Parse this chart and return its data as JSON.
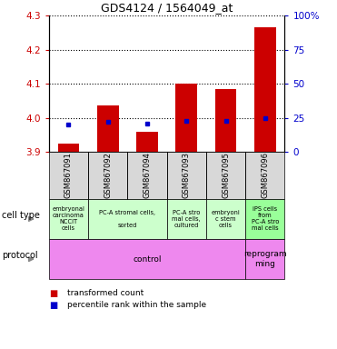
{
  "title": "GDS4124 / 1564049_at",
  "samples": [
    "GSM867091",
    "GSM867092",
    "GSM867094",
    "GSM867093",
    "GSM867095",
    "GSM867096"
  ],
  "transformed_counts": [
    3.925,
    4.035,
    3.96,
    4.1,
    4.085,
    4.265
  ],
  "percentile_ranks": [
    20,
    22,
    21,
    23,
    23,
    25
  ],
  "y_min": 3.9,
  "y_max": 4.3,
  "y_ticks": [
    3.9,
    4.0,
    4.1,
    4.2,
    4.3
  ],
  "y_right_ticks": [
    0,
    25,
    50,
    75,
    100
  ],
  "y_right_labels": [
    "0",
    "25",
    "50",
    "75",
    "100%"
  ],
  "bar_color": "#cc0000",
  "dot_color": "#0000cc",
  "bar_width": 0.55,
  "cell_type_data": [
    {
      "label": "embryonal\ncarcinoma\nNCCIT\ncells",
      "start": 0,
      "end": 1,
      "color": "#ccffcc"
    },
    {
      "label": "PC-A stromal cells,\n\nsorted",
      "start": 1,
      "end": 3,
      "color": "#ccffcc"
    },
    {
      "label": "PC-A stro\nmal cells,\ncultured",
      "start": 3,
      "end": 4,
      "color": "#ccffcc"
    },
    {
      "label": "embryoni\nc stem\ncells",
      "start": 4,
      "end": 5,
      "color": "#ccffcc"
    },
    {
      "label": "iPS cells\nfrom\nPC-A stro\nmal cells",
      "start": 5,
      "end": 6,
      "color": "#99ff99"
    }
  ],
  "protocol_data": [
    {
      "label": "control",
      "start": 0,
      "end": 5,
      "color": "#ee88ee"
    },
    {
      "label": "reprogram\nming",
      "start": 5,
      "end": 6,
      "color": "#ee88ee"
    }
  ],
  "label_cell_type": "cell type",
  "label_protocol": "protocol",
  "legend_items": [
    "transformed count",
    "percentile rank within the sample"
  ],
  "legend_colors": [
    "#cc0000",
    "#0000cc"
  ],
  "bar_axis_color": "#cc0000",
  "pct_axis_color": "#0000cc"
}
